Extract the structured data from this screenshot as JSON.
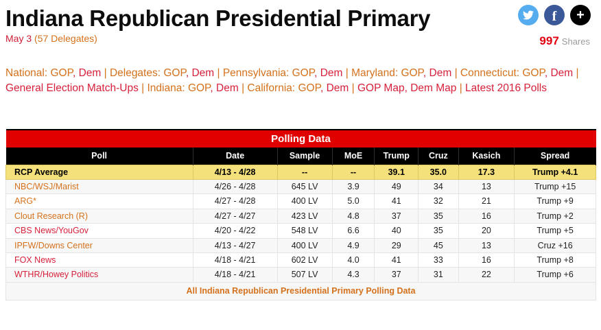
{
  "page": {
    "title": "Indiana Republican Presidential Primary",
    "date_label": "May 3",
    "delegates_label": "(57 Delegates)"
  },
  "share": {
    "count": "997",
    "label": "Shares",
    "buttons": [
      "twitter-icon",
      "facebook-icon",
      "plus-icon"
    ]
  },
  "colors": {
    "banner_red": "#e00000",
    "header_black": "#000000",
    "rcp_yellow": "#f4e17b",
    "link_orange": "#d4711c",
    "link_red": "#d6203a",
    "twitter_blue": "#55acee",
    "facebook_blue": "#3b5998"
  },
  "nav": {
    "tokens": [
      {
        "t": "National: GOP",
        "c": "o"
      },
      {
        "t": ", ",
        "c": "r",
        "sep": true
      },
      {
        "t": "Dem",
        "c": "r"
      },
      {
        "t": " | ",
        "c": "o",
        "sep": true
      },
      {
        "t": "Delegates: GOP",
        "c": "o"
      },
      {
        "t": ", ",
        "c": "r",
        "sep": true
      },
      {
        "t": "Dem",
        "c": "r"
      },
      {
        "t": " | ",
        "c": "o",
        "sep": true
      },
      {
        "t": "Pennsylvania: GOP",
        "c": "o"
      },
      {
        "t": ", ",
        "c": "r",
        "sep": true
      },
      {
        "t": "Dem",
        "c": "r"
      },
      {
        "t": " | ",
        "c": "o",
        "sep": true
      },
      {
        "t": "Maryland: GOP",
        "c": "o"
      },
      {
        "t": ", ",
        "c": "r",
        "sep": true
      },
      {
        "t": "Dem",
        "c": "r"
      },
      {
        "t": " | ",
        "c": "o",
        "sep": true
      },
      {
        "t": "Connecticut: GOP",
        "c": "o"
      },
      {
        "t": ", ",
        "c": "r",
        "sep": true
      },
      {
        "t": "Dem",
        "c": "r"
      },
      {
        "t": " |",
        "c": "o",
        "sep": true
      },
      {
        "br": true
      },
      {
        "t": "General Election Match-Ups",
        "c": "r"
      },
      {
        "t": " | ",
        "c": "o",
        "sep": true
      },
      {
        "t": "Indiana: GOP",
        "c": "o"
      },
      {
        "t": ", ",
        "c": "r",
        "sep": true
      },
      {
        "t": "Dem",
        "c": "r"
      },
      {
        "t": " | ",
        "c": "o",
        "sep": true
      },
      {
        "t": "California: GOP",
        "c": "o"
      },
      {
        "t": ", ",
        "c": "r",
        "sep": true
      },
      {
        "t": "Dem",
        "c": "r"
      },
      {
        "t": " | ",
        "c": "o",
        "sep": true
      },
      {
        "t": "GOP Map",
        "c": "r"
      },
      {
        "t": ", ",
        "c": "r",
        "sep": true
      },
      {
        "t": "Dem Map",
        "c": "r"
      },
      {
        "t": " | ",
        "c": "o",
        "sep": true
      },
      {
        "t": "Latest 2016 Polls",
        "c": "r"
      }
    ]
  },
  "table": {
    "banner": "Polling Data",
    "columns": [
      "Poll",
      "Date",
      "Sample",
      "MoE",
      "Trump",
      "Cruz",
      "Kasich",
      "Spread"
    ],
    "average_row": {
      "poll": "RCP Average",
      "date": "4/13 - 4/28",
      "sample": "--",
      "moe": "--",
      "trump": "39.1",
      "cruz": "35.0",
      "kasich": "17.3",
      "spread": "Trump +4.1"
    },
    "rows": [
      {
        "poll": "NBC/WSJ/Marist",
        "link_color": "orange",
        "date": "4/26 - 4/28",
        "sample": "645 LV",
        "moe": "3.9",
        "trump": "49",
        "cruz": "34",
        "kasich": "13",
        "spread": "Trump +15"
      },
      {
        "poll": "ARG*",
        "link_color": "orange",
        "date": "4/27 - 4/28",
        "sample": "400 LV",
        "moe": "5.0",
        "trump": "41",
        "cruz": "32",
        "kasich": "21",
        "spread": "Trump +9"
      },
      {
        "poll": "Clout Research (R)",
        "link_color": "orange",
        "date": "4/27 - 4/27",
        "sample": "423 LV",
        "moe": "4.8",
        "trump": "37",
        "cruz": "35",
        "kasich": "16",
        "spread": "Trump +2"
      },
      {
        "poll": "CBS News/YouGov",
        "link_color": "red",
        "date": "4/20 - 4/22",
        "sample": "548 LV",
        "moe": "6.6",
        "trump": "40",
        "cruz": "35",
        "kasich": "20",
        "spread": "Trump +5"
      },
      {
        "poll": "IPFW/Downs Center",
        "link_color": "orange",
        "date": "4/13 - 4/27",
        "sample": "400 LV",
        "moe": "4.9",
        "trump": "29",
        "cruz": "45",
        "kasich": "13",
        "spread": "Cruz +16"
      },
      {
        "poll": "FOX News",
        "link_color": "red",
        "date": "4/18 - 4/21",
        "sample": "602 LV",
        "moe": "4.0",
        "trump": "41",
        "cruz": "33",
        "kasich": "16",
        "spread": "Trump +8"
      },
      {
        "poll": "WTHR/Howey Politics",
        "link_color": "red",
        "date": "4/18 - 4/21",
        "sample": "507 LV",
        "moe": "4.3",
        "trump": "37",
        "cruz": "31",
        "kasich": "22",
        "spread": "Trump +6"
      }
    ],
    "footer_link": "All Indiana Republican Presidential Primary Polling Data"
  }
}
